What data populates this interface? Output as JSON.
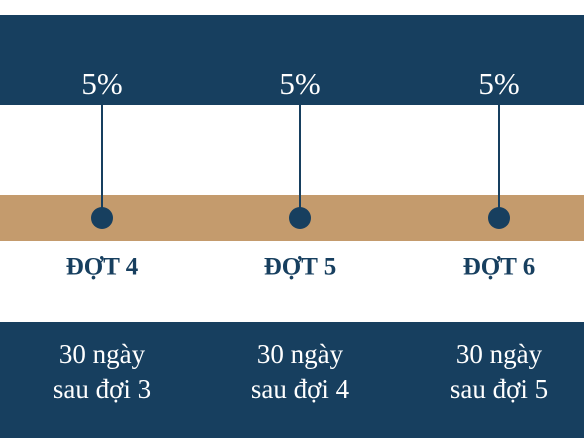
{
  "phases": [
    {
      "percent": "5%",
      "label": "ĐỢT 4",
      "timing": [
        "30 ngày",
        "sau đợi 3"
      ]
    },
    {
      "percent": "5%",
      "label": "ĐỢT 5",
      "timing": [
        "30 ngày",
        "sau đợi 4"
      ]
    },
    {
      "percent": "5%",
      "label": "ĐỢT 6",
      "timing": [
        "30 ngày",
        "sau đợi 5"
      ]
    }
  ]
}
